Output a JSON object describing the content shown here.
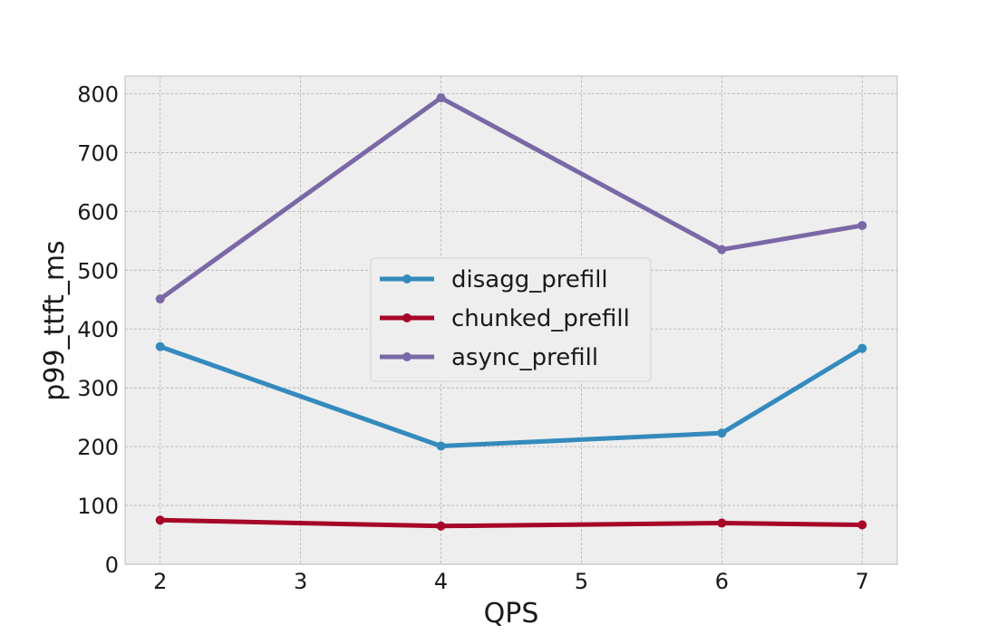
{
  "chart_data": {
    "type": "line",
    "title": "",
    "xlabel": "QPS",
    "ylabel": "p99_ttft_ms",
    "x": [
      2,
      4,
      6,
      7
    ],
    "xticks": [
      2,
      3,
      4,
      5,
      6,
      7
    ],
    "yticks": [
      0,
      100,
      200,
      300,
      400,
      500,
      600,
      700,
      800
    ],
    "xlim": [
      1.75,
      7.25
    ],
    "ylim": [
      0,
      830
    ],
    "grid": true,
    "legend_position": "center",
    "series": [
      {
        "name": "disagg_prefill",
        "color": "#348ABD",
        "values": [
          370,
          201,
          223,
          367
        ]
      },
      {
        "name": "chunked_prefill",
        "color": "#A60628",
        "values": [
          75,
          65,
          70,
          67
        ]
      },
      {
        "name": "async_prefill",
        "color": "#7A68A6",
        "values": [
          451,
          793,
          535,
          576
        ]
      }
    ]
  }
}
